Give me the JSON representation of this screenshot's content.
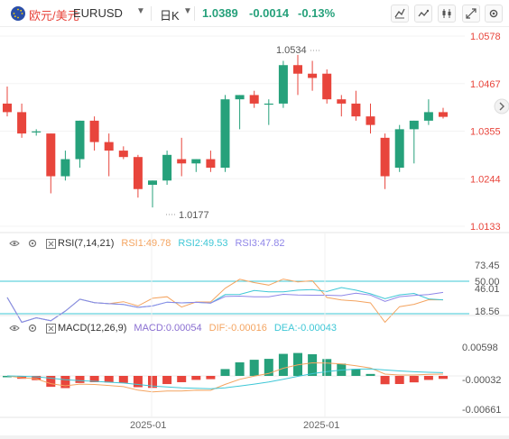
{
  "header": {
    "pair_name": "欧元/美元",
    "symbol": "EURUSD",
    "timeframe": "日K",
    "last_price": "1.0389",
    "change": "-0.0014",
    "change_pct": "-0.13%"
  },
  "colors": {
    "up": "#26a17b",
    "down": "#e8453c",
    "rsi1": "#f4a460",
    "rsi2": "#3ec7d6",
    "rsi3": "#8f86e8",
    "macd_label": "#8a6fd1",
    "dif": "#f4a460",
    "dea": "#3ec7d6"
  },
  "price_axis": [
    "1.0578",
    "1.0467",
    "1.0355",
    "1.0244",
    "1.0133"
  ],
  "annotations": {
    "high": "1.0534",
    "low": "1.0177"
  },
  "rsi": {
    "label": "RSI(7,14,21)",
    "rsi1": "RSI1:49.78",
    "rsi2": "RSI2:49.53",
    "rsi3": "RSI3:47.82",
    "axis": [
      "73.45",
      "50.00",
      "46.01",
      "18.56"
    ]
  },
  "macd": {
    "label": "MACD(12,26,9)",
    "macd_value": "MACD:0.00054",
    "dif": "DIF:-0.00016",
    "dea": "DEA:-0.00043",
    "axis": [
      "0.00598",
      "-0.00032",
      "-0.00661"
    ]
  },
  "time_axis": [
    "2025-01",
    "2025-01"
  ],
  "chart_data": {
    "type": "candlestick",
    "ylim": [
      1.0133,
      1.0578
    ],
    "candles": [
      {
        "o": 1.042,
        "h": 1.046,
        "l": 1.039,
        "c": 1.04
      },
      {
        "o": 1.04,
        "h": 1.042,
        "l": 1.034,
        "c": 1.035
      },
      {
        "o": 1.0355,
        "h": 1.036,
        "l": 1.0345,
        "c": 1.0355
      },
      {
        "o": 1.035,
        "h": 1.035,
        "l": 1.021,
        "c": 1.025
      },
      {
        "o": 1.025,
        "h": 1.031,
        "l": 1.024,
        "c": 1.029
      },
      {
        "o": 1.029,
        "h": 1.038,
        "l": 1.027,
        "c": 1.038
      },
      {
        "o": 1.038,
        "h": 1.039,
        "l": 1.031,
        "c": 1.033
      },
      {
        "o": 1.033,
        "h": 1.035,
        "l": 1.025,
        "c": 1.031
      },
      {
        "o": 1.031,
        "h": 1.032,
        "l": 1.029,
        "c": 1.0295
      },
      {
        "o": 1.0295,
        "h": 1.03,
        "l": 1.02,
        "c": 1.022
      },
      {
        "o": 1.023,
        "h": 1.024,
        "l": 1.0177,
        "c": 1.024
      },
      {
        "o": 1.024,
        "h": 1.031,
        "l": 1.023,
        "c": 1.03
      },
      {
        "o": 1.029,
        "h": 1.034,
        "l": 1.025,
        "c": 1.028
      },
      {
        "o": 1.028,
        "h": 1.029,
        "l": 1.026,
        "c": 1.029
      },
      {
        "o": 1.029,
        "h": 1.031,
        "l": 1.026,
        "c": 1.027
      },
      {
        "o": 1.027,
        "h": 1.044,
        "l": 1.026,
        "c": 1.043
      },
      {
        "o": 1.043,
        "h": 1.044,
        "l": 1.036,
        "c": 1.044
      },
      {
        "o": 1.044,
        "h": 1.045,
        "l": 1.041,
        "c": 1.042
      },
      {
        "o": 1.042,
        "h": 1.043,
        "l": 1.037,
        "c": 1.042
      },
      {
        "o": 1.042,
        "h": 1.052,
        "l": 1.041,
        "c": 1.051
      },
      {
        "o": 1.051,
        "h": 1.0534,
        "l": 1.044,
        "c": 1.049
      },
      {
        "o": 1.049,
        "h": 1.052,
        "l": 1.045,
        "c": 1.048
      },
      {
        "o": 1.049,
        "h": 1.05,
        "l": 1.042,
        "c": 1.043
      },
      {
        "o": 1.043,
        "h": 1.044,
        "l": 1.039,
        "c": 1.042
      },
      {
        "o": 1.042,
        "h": 1.045,
        "l": 1.038,
        "c": 1.039
      },
      {
        "o": 1.039,
        "h": 1.042,
        "l": 1.035,
        "c": 1.037
      },
      {
        "o": 1.034,
        "h": 1.035,
        "l": 1.022,
        "c": 1.025
      },
      {
        "o": 1.027,
        "h": 1.037,
        "l": 1.026,
        "c": 1.036
      },
      {
        "o": 1.036,
        "h": 1.038,
        "l": 1.028,
        "c": 1.038
      },
      {
        "o": 1.038,
        "h": 1.043,
        "l": 1.037,
        "c": 1.04
      },
      {
        "o": 1.04,
        "h": 1.041,
        "l": 1.0385,
        "c": 1.0389
      }
    ]
  }
}
